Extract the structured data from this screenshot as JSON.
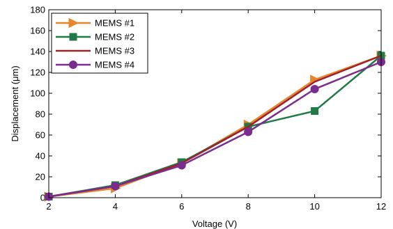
{
  "chart_data": {
    "type": "line",
    "xlabel": "Voltage (V)",
    "ylabel": "Displacement (μm)",
    "xlim": [
      2,
      12
    ],
    "ylim": [
      0,
      180
    ],
    "xticks": [
      2,
      4,
      6,
      8,
      10,
      12
    ],
    "yticks": [
      0,
      20,
      40,
      60,
      80,
      100,
      120,
      140,
      160,
      180
    ],
    "grid": false,
    "legend_position": "top-left",
    "x": [
      2,
      4,
      6,
      8,
      10,
      12
    ],
    "series": [
      {
        "name": "MEMS #1",
        "color": "#E8862E",
        "marker": "triangle-right",
        "values": [
          1,
          9,
          33,
          70,
          113,
          136
        ]
      },
      {
        "name": "MEMS #2",
        "color": "#1F7A45",
        "marker": "square",
        "values": [
          1,
          12,
          34,
          68,
          83,
          136
        ]
      },
      {
        "name": "MEMS #3",
        "color": "#A0202A",
        "marker": "none",
        "values": [
          1,
          11,
          33,
          68,
          111,
          136
        ]
      },
      {
        "name": "MEMS #4",
        "color": "#7B2D8E",
        "marker": "circle",
        "values": [
          1,
          11,
          31,
          63,
          104,
          130
        ]
      }
    ]
  }
}
